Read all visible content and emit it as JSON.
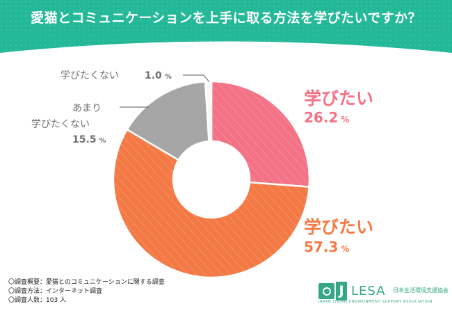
{
  "colors": {
    "frame": "#23b897",
    "panel": "#ffffff",
    "not_want": "#f8f8f8",
    "not_much": "#a6a6a6",
    "want_orange": "#f47a45",
    "want_pink": "#f47286",
    "label_gray": "#707070"
  },
  "title": "愛猫とコミュニケーションを上手に取る方法を学びたいですか？",
  "chart_data": {
    "type": "pie",
    "donut": true,
    "title": "愛猫とコミュニケーションを上手に取る方法を学びたいですか？",
    "slices": [
      {
        "name": "学びたい",
        "value": 26.2,
        "value_label": "26.2",
        "percent_symbol": "%",
        "color": "#f47286",
        "hatched": true
      },
      {
        "name": "学びたい",
        "value": 57.3,
        "value_label": "57.3",
        "percent_symbol": "%",
        "color": "#f47a45",
        "hatched": true
      },
      {
        "name": "あまり学びたくない",
        "name_lines": [
          "あまり",
          "学びたくない"
        ],
        "value": 15.5,
        "value_label": "15.5",
        "percent_symbol": "%",
        "color": "#a6a6a6",
        "hatched": false
      },
      {
        "name": "学びたくない",
        "value": 1.0,
        "value_label": "1.0",
        "percent_symbol": "%",
        "color": "#f8f8f8",
        "hatched": false
      }
    ]
  },
  "survey": [
    "〇調査概要：愛猫とのコミュニケーションに関する調査",
    "〇調査方法：インターネット調査",
    "〇調査人数：103 人"
  ],
  "logo": {
    "mark": "",
    "j": "J",
    "name": "LESA",
    "japanese": "日本生活環境支援協会",
    "english": "JAPAN LIVING ENVIRONMENT SUPPORT ASSOCIATION"
  }
}
